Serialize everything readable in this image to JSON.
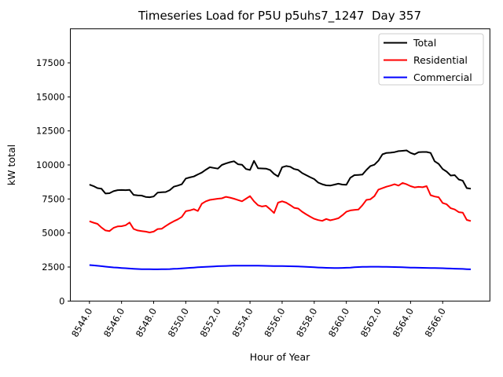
{
  "chart_data": {
    "type": "line",
    "title": "Timeseries Load for P5U p5uhs7_1247  Day 357",
    "xlabel": "Hour of Year",
    "ylabel": "kW total",
    "grid": false,
    "legend_position": "upper right",
    "xlim": [
      8542.81,
      8568.94
    ],
    "ylim": [
      0,
      20000
    ],
    "xticks": [
      8544.0,
      8546.0,
      8548.0,
      8550.0,
      8552.0,
      8554.0,
      8556.0,
      8558.0,
      8560.0,
      8562.0,
      8564.0,
      8566.0
    ],
    "xtick_labels": [
      "8544.0",
      "8546.0",
      "8548.0",
      "8550.0",
      "8552.0",
      "8554.0",
      "8556.0",
      "8558.0",
      "8560.0",
      "8562.0",
      "8564.0",
      "8566.0"
    ],
    "yticks": [
      0,
      2500,
      5000,
      7500,
      10000,
      12500,
      15000,
      17500
    ],
    "x_start": 8544.0,
    "x_step": 0.25,
    "series": [
      {
        "name": "Total",
        "color": "#000000",
        "values": [
          8550,
          8450,
          8300,
          8250,
          7900,
          7920,
          8070,
          8150,
          8160,
          8150,
          8170,
          7800,
          7760,
          7750,
          7650,
          7630,
          7680,
          7970,
          7990,
          8010,
          8150,
          8400,
          8480,
          8580,
          9000,
          9080,
          9150,
          9300,
          9440,
          9650,
          9830,
          9780,
          9730,
          10000,
          10110,
          10200,
          10270,
          10050,
          10020,
          9700,
          9630,
          10300,
          9750,
          9740,
          9730,
          9630,
          9345,
          9150,
          9830,
          9920,
          9870,
          9700,
          9630,
          9400,
          9250,
          9100,
          8960,
          8700,
          8580,
          8500,
          8480,
          8550,
          8620,
          8560,
          8540,
          9060,
          9250,
          9270,
          9290,
          9630,
          9920,
          10020,
          10310,
          10780,
          10880,
          10900,
          10940,
          11015,
          11040,
          11070,
          10880,
          10780,
          10940,
          10950,
          10950,
          10880,
          10270,
          10080,
          9700,
          9510,
          9220,
          9250,
          8930,
          8840,
          8300,
          8260
        ]
      },
      {
        "name": "Residential",
        "color": "#ff0000",
        "values": [
          5860,
          5760,
          5670,
          5400,
          5190,
          5140,
          5380,
          5480,
          5500,
          5570,
          5770,
          5300,
          5190,
          5140,
          5100,
          5040,
          5100,
          5290,
          5310,
          5510,
          5700,
          5860,
          6000,
          6180,
          6600,
          6660,
          6750,
          6620,
          7150,
          7330,
          7430,
          7480,
          7520,
          7550,
          7660,
          7600,
          7520,
          7420,
          7330,
          7520,
          7710,
          7330,
          7040,
          6950,
          7000,
          6750,
          6470,
          7230,
          7330,
          7230,
          7050,
          6850,
          6800,
          6560,
          6370,
          6200,
          6040,
          5950,
          5890,
          6030,
          5930,
          6000,
          6080,
          6300,
          6560,
          6660,
          6700,
          6720,
          7040,
          7430,
          7480,
          7710,
          8190,
          8290,
          8400,
          8480,
          8580,
          8480,
          8680,
          8580,
          8440,
          8350,
          8390,
          8360,
          8440,
          7780,
          7680,
          7630,
          7210,
          7110,
          6820,
          6730,
          6530,
          6500,
          5960,
          5880
        ]
      },
      {
        "name": "Commercial",
        "color": "#0000ff",
        "values": [
          2640,
          2620,
          2590,
          2560,
          2530,
          2500,
          2470,
          2450,
          2430,
          2410,
          2390,
          2370,
          2355,
          2345,
          2340,
          2335,
          2330,
          2330,
          2335,
          2340,
          2350,
          2365,
          2380,
          2400,
          2420,
          2440,
          2460,
          2480,
          2500,
          2515,
          2530,
          2545,
          2560,
          2570,
          2580,
          2590,
          2595,
          2600,
          2600,
          2600,
          2600,
          2600,
          2595,
          2590,
          2585,
          2580,
          2575,
          2570,
          2565,
          2560,
          2555,
          2550,
          2540,
          2530,
          2515,
          2500,
          2480,
          2465,
          2450,
          2440,
          2435,
          2430,
          2430,
          2435,
          2445,
          2460,
          2480,
          2500,
          2510,
          2515,
          2520,
          2520,
          2520,
          2515,
          2510,
          2505,
          2500,
          2490,
          2480,
          2470,
          2460,
          2450,
          2445,
          2440,
          2435,
          2430,
          2425,
          2420,
          2410,
          2400,
          2390,
          2380,
          2370,
          2360,
          2345,
          2330
        ]
      }
    ]
  }
}
